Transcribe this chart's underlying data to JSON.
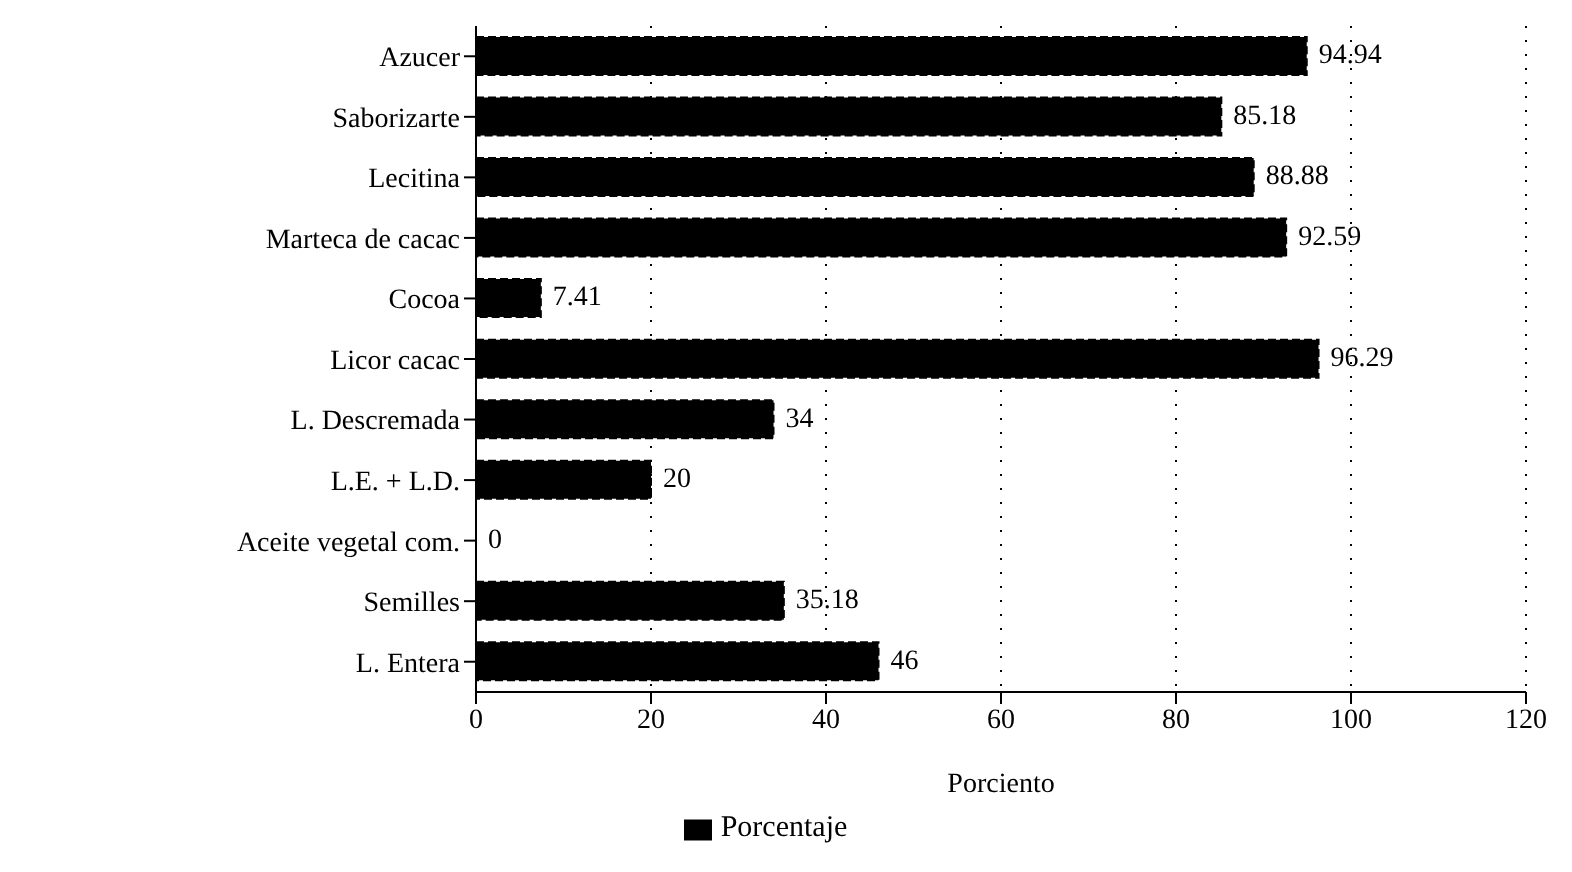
{
  "chart_data": {
    "type": "bar",
    "orientation": "horizontal",
    "xlabel": "Porciento",
    "categories": [
      "Azucer",
      "Saborizarte",
      "Lecitina",
      "Marteca de cacac",
      "Cocoa",
      "Licor cacac",
      "L. Descremada",
      "L.E. + L.D.",
      "Aceite vegetal com.",
      "Semilles",
      "L. Entera"
    ],
    "series": [
      {
        "name": "Porcentaje",
        "color": "#000000",
        "values": [
          94.94,
          85.18,
          88.88,
          92.59,
          7.41,
          96.29,
          34,
          20,
          0,
          35.18,
          46
        ]
      }
    ],
    "xlim": [
      0,
      120
    ],
    "xticks": [
      0,
      20,
      40,
      60,
      80,
      100,
      120
    ],
    "grid": "x",
    "legend": "bottom",
    "data_labels": true
  }
}
